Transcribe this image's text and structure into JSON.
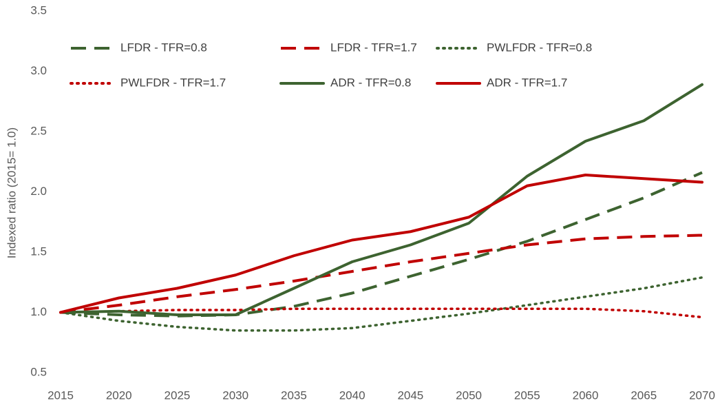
{
  "chart_data": {
    "type": "line",
    "y_label": "Indexed ratio (2015= 1.0)",
    "x": [
      2015,
      2020,
      2025,
      2030,
      2035,
      2040,
      2045,
      2050,
      2055,
      2060,
      2065,
      2070
    ],
    "xlim": [
      2015,
      2070
    ],
    "xticks": [
      2015,
      2020,
      2025,
      2030,
      2035,
      2040,
      2045,
      2050,
      2055,
      2060,
      2065,
      2070
    ],
    "ylim": [
      0.5,
      3.5
    ],
    "yticks": [
      0.5,
      {
        "value": 1,
        "label": "1.0"
      },
      1.5,
      {
        "value": 2,
        "label": "2.0"
      },
      2.5,
      {
        "value": 3,
        "label": "3.0"
      },
      3.5
    ],
    "grid": false,
    "series": [
      {
        "name": "LFDR - TFR=0.8",
        "color": "#3d6330",
        "style": "dashed",
        "values": [
          1.0,
          0.98,
          0.97,
          0.98,
          1.05,
          1.16,
          1.3,
          1.44,
          1.59,
          1.77,
          1.95,
          2.16
        ]
      },
      {
        "name": "LFDR - TFR=1.7",
        "color": "#c00000",
        "style": "dashed",
        "values": [
          1.0,
          1.06,
          1.13,
          1.19,
          1.26,
          1.34,
          1.42,
          1.49,
          1.56,
          1.61,
          1.63,
          1.64
        ]
      },
      {
        "name": "PWLFDR - TFR=0.8",
        "color": "#3d6330",
        "style": "dotted",
        "values": [
          1.0,
          0.93,
          0.88,
          0.85,
          0.85,
          0.87,
          0.93,
          0.99,
          1.06,
          1.13,
          1.2,
          1.29
        ]
      },
      {
        "name": "PWLFDR - TFR=1.7",
        "color": "#c00000",
        "style": "dotted",
        "values": [
          1.0,
          1.01,
          1.02,
          1.02,
          1.03,
          1.03,
          1.03,
          1.03,
          1.03,
          1.03,
          1.01,
          0.96
        ]
      },
      {
        "name": "ADR - TFR=0.8",
        "color": "#3d6330",
        "style": "solid",
        "values": [
          1.0,
          1.01,
          0.98,
          0.98,
          1.2,
          1.42,
          1.56,
          1.74,
          2.13,
          2.42,
          2.59,
          2.89
        ]
      },
      {
        "name": "ADR - TFR=1.7",
        "color": "#c00000",
        "style": "solid",
        "values": [
          1.0,
          1.12,
          1.2,
          1.31,
          1.47,
          1.6,
          1.67,
          1.79,
          2.05,
          2.14,
          2.11,
          2.08
        ]
      }
    ]
  }
}
